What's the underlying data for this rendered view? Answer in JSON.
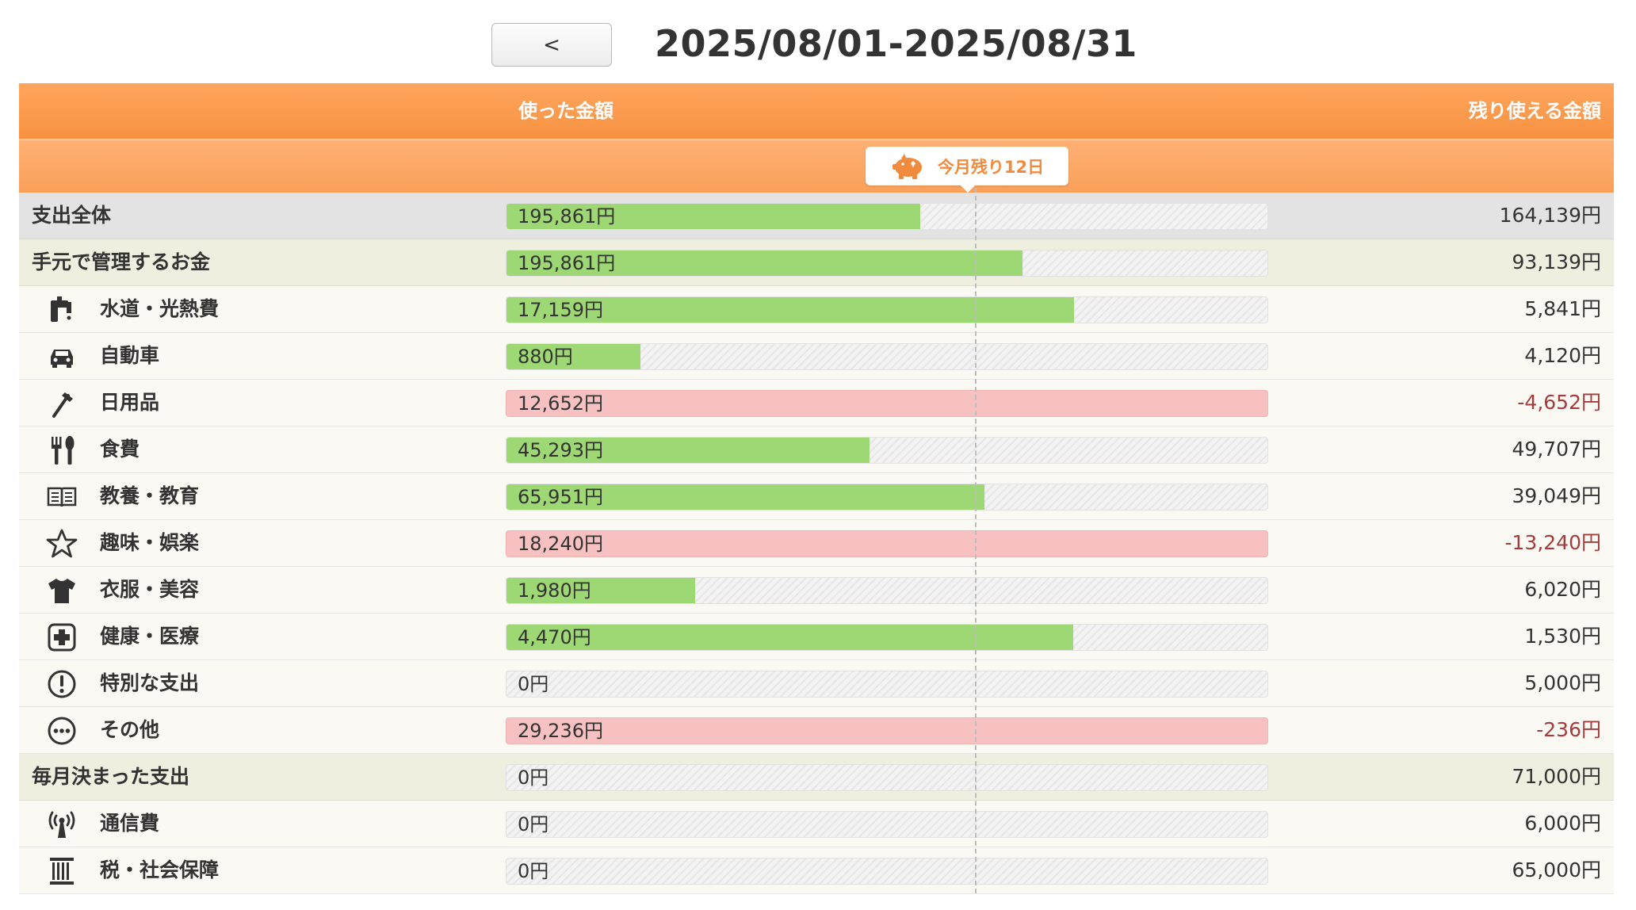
{
  "header": {
    "prev_label": "<",
    "period": "2025/08/01-2025/08/31"
  },
  "table": {
    "col_used": "使った金額",
    "col_remaining": "残り使える金額",
    "days_left_badge": "今月残り12日"
  },
  "colors": {
    "header_orange": "#f79240",
    "bar_green": "#9ed874",
    "bar_over_pink": "#f6c1c0",
    "negative_text": "#a33c3c"
  },
  "rows": [
    {
      "type": "total",
      "label": "支出全体",
      "used": "195,861円",
      "remaining": "164,139円",
      "fill": 0.544,
      "over": false,
      "negative": false
    },
    {
      "type": "group",
      "label": "手元で管理するお金",
      "used": "195,861円",
      "remaining": "93,139円",
      "fill": 0.678,
      "over": false,
      "negative": false
    },
    {
      "type": "cat",
      "icon": "faucet-icon",
      "label": "水道・光熱費",
      "used": "17,159円",
      "remaining": "5,841円",
      "fill": 0.746,
      "over": false,
      "negative": false
    },
    {
      "type": "cat",
      "icon": "car-icon",
      "label": "自動車",
      "used": "880円",
      "remaining": "4,120円",
      "fill": 0.176,
      "over": false,
      "negative": false
    },
    {
      "type": "cat",
      "icon": "toothbrush-icon",
      "label": "日用品",
      "used": "12,652円",
      "remaining": "-4,652円",
      "fill": 1.0,
      "over": true,
      "negative": true
    },
    {
      "type": "cat",
      "icon": "cutlery-icon",
      "label": "食費",
      "used": "45,293円",
      "remaining": "49,707円",
      "fill": 0.477,
      "over": false,
      "negative": false
    },
    {
      "type": "cat",
      "icon": "book-icon",
      "label": "教養・教育",
      "used": "65,951円",
      "remaining": "39,049円",
      "fill": 0.628,
      "over": false,
      "negative": false
    },
    {
      "type": "cat",
      "icon": "star-icon",
      "label": "趣味・娯楽",
      "used": "18,240円",
      "remaining": "-13,240円",
      "fill": 1.0,
      "over": true,
      "negative": true
    },
    {
      "type": "cat",
      "icon": "shirt-icon",
      "label": "衣服・美容",
      "used": "1,980円",
      "remaining": "6,020円",
      "fill": 0.248,
      "over": false,
      "negative": false
    },
    {
      "type": "cat",
      "icon": "medical-cross-icon",
      "label": "健康・医療",
      "used": "4,470円",
      "remaining": "1,530円",
      "fill": 0.745,
      "over": false,
      "negative": false
    },
    {
      "type": "cat",
      "icon": "exclamation-icon",
      "label": "特別な支出",
      "used": "0円",
      "remaining": "5,000円",
      "fill": 0,
      "over": false,
      "negative": false
    },
    {
      "type": "cat",
      "icon": "more-dots-icon",
      "label": "その他",
      "used": "29,236円",
      "remaining": "-236円",
      "fill": 1.0,
      "over": true,
      "negative": true
    },
    {
      "type": "group",
      "label": "毎月決まった支出",
      "used": "0円",
      "remaining": "71,000円",
      "fill": 0,
      "over": false,
      "negative": false
    },
    {
      "type": "cat",
      "icon": "antenna-icon",
      "label": "通信費",
      "used": "0円",
      "remaining": "6,000円",
      "fill": 0,
      "over": false,
      "negative": false
    },
    {
      "type": "cat",
      "icon": "pillar-icon",
      "label": "税・社会保障",
      "used": "0円",
      "remaining": "65,000円",
      "fill": 0,
      "over": false,
      "negative": false
    }
  ]
}
